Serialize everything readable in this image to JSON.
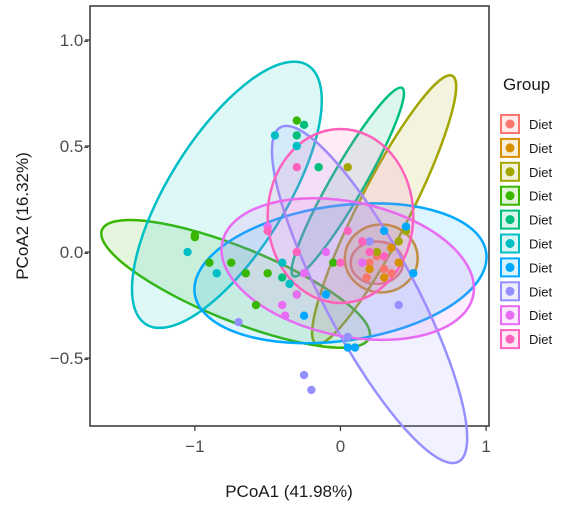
{
  "chart_data": {
    "type": "scatter",
    "xlabel": "PCoA1 (41.98%)",
    "ylabel": "PCoA2 (16.32%)",
    "xlim": [
      -1.72,
      1.02
    ],
    "ylim": [
      -0.82,
      1.16
    ],
    "xticks": [
      -1,
      0,
      1
    ],
    "xtick_labels": [
      "−1",
      "0",
      "1"
    ],
    "yticks": [
      1.0,
      0.5,
      0.0,
      -0.5
    ],
    "ytick_labels": [
      "1.0-",
      "0.5-",
      "0.0-",
      "−0.5-"
    ],
    "grid": false,
    "legend": {
      "title": "Group",
      "position": "right"
    },
    "series": [
      {
        "label": "Diet",
        "color": "#F8766D",
        "ellipse": {
          "cx": 0.25,
          "cy": -0.05,
          "rx": 0.18,
          "ry": 0.1,
          "angle": 0
        },
        "points": [
          [
            0.2,
            -0.05
          ],
          [
            0.3,
            -0.08
          ],
          [
            0.25,
            -0.02
          ],
          [
            0.35,
            -0.1
          ],
          [
            0.18,
            -0.12
          ]
        ]
      },
      {
        "label": "Diet",
        "color": "#D89000",
        "ellipse": {
          "cx": 0.28,
          "cy": -0.03,
          "rx": 0.25,
          "ry": 0.16,
          "angle": 0
        },
        "points": [
          [
            0.35,
            0.02
          ],
          [
            0.3,
            -0.12
          ],
          [
            0.2,
            -0.08
          ],
          [
            0.4,
            -0.05
          ]
        ]
      },
      {
        "label": "Diet",
        "color": "#A3A500",
        "ellipse": {
          "cx": 0.3,
          "cy": 0.2,
          "rx": 0.75,
          "ry": 0.16,
          "angle": 63
        },
        "points": [
          [
            0.05,
            0.4
          ],
          [
            0.4,
            0.05
          ],
          [
            0.45,
            0.1
          ],
          [
            0.25,
            0.0
          ]
        ]
      },
      {
        "label": "Diet",
        "color": "#39B600",
        "ellipse": {
          "cx": -0.72,
          "cy": -0.15,
          "rx": 0.92,
          "ry": 0.18,
          "angle": -22
        },
        "points": [
          [
            -1.0,
            0.07
          ],
          [
            -0.75,
            -0.05
          ],
          [
            -0.65,
            -0.1
          ],
          [
            -0.9,
            -0.05
          ],
          [
            -0.58,
            -0.25
          ],
          [
            -0.3,
            -0.2
          ],
          [
            -0.5,
            -0.1
          ],
          [
            -0.05,
            -0.05
          ],
          [
            -0.3,
            0.62
          ],
          [
            -1.0,
            0.08
          ]
        ]
      },
      {
        "label": "Diet",
        "color": "#00BF7D",
        "ellipse": {
          "cx": 0.05,
          "cy": 0.33,
          "rx": 0.55,
          "ry": 0.1,
          "angle": 60
        },
        "points": [
          [
            -0.25,
            0.6
          ],
          [
            -0.3,
            0.55
          ],
          [
            -0.15,
            0.4
          ],
          [
            -0.4,
            -0.12
          ]
        ]
      },
      {
        "label": "Diet",
        "color": "#00BFC4",
        "ellipse": {
          "cx": -0.78,
          "cy": 0.27,
          "rx": 0.78,
          "ry": 0.35,
          "angle": 58
        },
        "points": [
          [
            -1.05,
            0.0
          ],
          [
            -0.45,
            0.55
          ],
          [
            -0.85,
            -0.1
          ],
          [
            -0.4,
            -0.05
          ],
          [
            -0.35,
            -0.15
          ],
          [
            -0.3,
            0.5
          ]
        ]
      },
      {
        "label": "Diet",
        "color": "#00A9FF",
        "ellipse": {
          "cx": 0.0,
          "cy": -0.1,
          "rx": 1.0,
          "ry": 0.32,
          "angle": 8
        },
        "points": [
          [
            0.3,
            0.1
          ],
          [
            -0.25,
            -0.3
          ],
          [
            0.05,
            -0.45
          ],
          [
            0.1,
            -0.45
          ],
          [
            -0.1,
            -0.2
          ],
          [
            0.45,
            0.12
          ],
          [
            0.5,
            -0.1
          ]
        ]
      },
      {
        "label": "Diet",
        "color": "#9590FF",
        "ellipse": {
          "cx": 0.2,
          "cy": -0.2,
          "rx": 0.95,
          "ry": 0.28,
          "angle": -62
        },
        "points": [
          [
            -0.7,
            -0.33
          ],
          [
            -0.25,
            -0.58
          ],
          [
            -0.2,
            -0.65
          ],
          [
            0.05,
            -0.4
          ],
          [
            0.4,
            -0.25
          ],
          [
            0.2,
            0.05
          ]
        ]
      },
      {
        "label": "Diet",
        "color": "#E76BF3",
        "ellipse": {
          "cx": 0.05,
          "cy": -0.08,
          "rx": 0.86,
          "ry": 0.32,
          "angle": -12
        },
        "points": [
          [
            -0.5,
            0.12
          ],
          [
            -0.4,
            -0.25
          ],
          [
            -0.3,
            -0.2
          ],
          [
            -0.25,
            -0.1
          ],
          [
            -0.1,
            0.0
          ],
          [
            -0.38,
            -0.3
          ],
          [
            0.15,
            -0.05
          ]
        ]
      },
      {
        "label": "Diet",
        "color": "#FF62BC",
        "ellipse": {
          "cx": 0.0,
          "cy": 0.17,
          "rx": 0.5,
          "ry": 0.41,
          "angle": 0
        },
        "points": [
          [
            -0.3,
            0.4
          ],
          [
            -0.5,
            0.1
          ],
          [
            -0.3,
            0.0
          ],
          [
            0.0,
            -0.05
          ],
          [
            0.2,
            0.0
          ],
          [
            0.15,
            0.05
          ],
          [
            0.05,
            0.1
          ],
          [
            0.3,
            -0.02
          ]
        ]
      }
    ]
  }
}
